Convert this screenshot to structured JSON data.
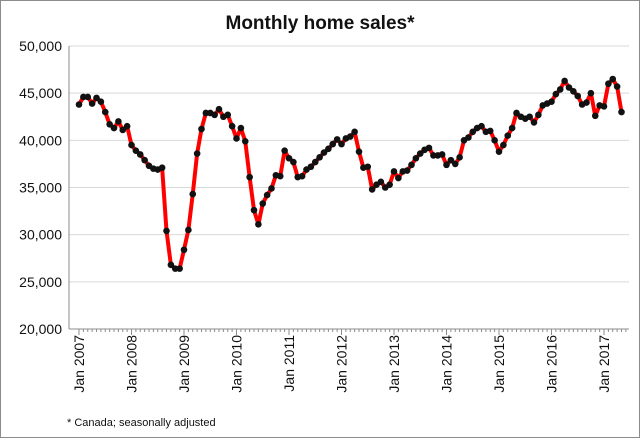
{
  "chart_data": {
    "type": "line",
    "title": "Monthly home sales*",
    "xlabel": "",
    "ylabel": "",
    "footnote": "* Canada; seasonally adjusted",
    "ylim": [
      20000,
      50000
    ],
    "y_ticks": [
      20000,
      25000,
      30000,
      35000,
      40000,
      45000,
      50000
    ],
    "y_tick_labels": [
      "20,000",
      "25,000",
      "30,000",
      "35,000",
      "40,000",
      "45,000",
      "50,000"
    ],
    "x_ticks": [
      "Jan 2007",
      "Jan 2008",
      "Jan 2009",
      "Jan 2010",
      "Jan 2011",
      "Jan 2012",
      "Jan 2013",
      "Jan 2014",
      "Jan 2015",
      "Jan 2016",
      "Jan 2017"
    ],
    "start": "Jan 2007",
    "grid": "horizontal",
    "colors": {
      "line": "#ff0000",
      "marker": "#111111",
      "grid": "#d9d9d9",
      "axis": "#8c8c8c"
    },
    "series": [
      {
        "values": [
          43800,
          44600,
          44600,
          43900,
          44500,
          44100,
          43000,
          41700,
          41300,
          42000,
          41100,
          41500,
          39500,
          38900,
          38500,
          37900,
          37300,
          37000,
          36900,
          37100,
          30400,
          26800,
          26400,
          26400,
          28400,
          30500,
          34300,
          38600,
          41200,
          42900,
          42900,
          42700,
          43300,
          42500,
          42700,
          41500,
          40200,
          41300,
          39900,
          36100,
          32600,
          31100,
          33300,
          34200,
          34900,
          36300,
          36200,
          38900,
          38100,
          37700,
          36100,
          36200,
          36900,
          37200,
          37700,
          38200,
          38700,
          39100,
          39600,
          40100,
          39600,
          40200,
          40400,
          40900,
          38800,
          37100,
          37200,
          34800,
          35300,
          35600,
          35000,
          35300,
          36700,
          36000,
          36700,
          36800,
          37400,
          38100,
          38600,
          39000,
          39200,
          38400,
          38400,
          38500,
          37400,
          37900,
          37500,
          38200,
          40000,
          40300,
          40900,
          41300,
          41500,
          40900,
          41000,
          40000,
          38800,
          39500,
          40500,
          41300,
          42900,
          42500,
          42300,
          42500,
          41900,
          42700,
          43700,
          43900,
          44100,
          44900,
          45400,
          46300,
          45600,
          45200,
          44700,
          43800,
          44000,
          45000,
          42600,
          43700,
          43600,
          46000,
          46500,
          45700,
          43000
        ]
      }
    ]
  }
}
